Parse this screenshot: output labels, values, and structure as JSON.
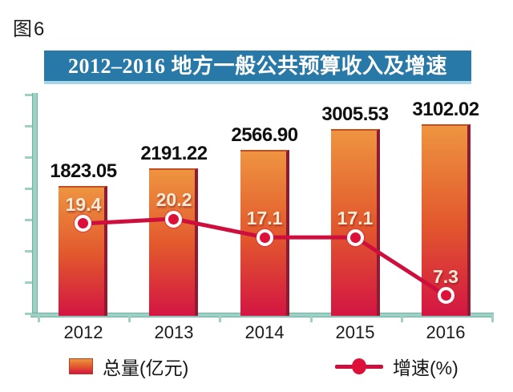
{
  "figure_label": "图6",
  "title": "2012–2016 地方一般公共预算收入及增速",
  "legend": [
    {
      "label": "总量(亿元)",
      "swatch": "bar"
    },
    {
      "label": "增速(%)",
      "swatch": "line-dot"
    }
  ],
  "colors": {
    "title_bg": "#2878A8",
    "title_underline": "#A6D7E8",
    "title_text": "#FFFFFF",
    "axis": "#9ED1C4",
    "axis_edge": "#6FB0A3",
    "bar_top": "#EE9440",
    "bar_mid": "#E2582D",
    "bar_bottom": "#D31543",
    "bar_edge": "#8E1B31",
    "line": "#CE0F3D",
    "marker_fill": "#DC1038",
    "marker_ring": "#FFFFFF",
    "value_label": "#101010",
    "growth_label": "#F6EBD4"
  },
  "chart_data": {
    "type": "bar",
    "title": "2012–2016 地方一般公共预算收入及增速",
    "categories": [
      "2012",
      "2013",
      "2014",
      "2015",
      "2016"
    ],
    "series": [
      {
        "name": "总量(亿元)",
        "type": "bar",
        "values": [
          1823.05,
          2191.22,
          2566.9,
          3005.53,
          3102.02
        ]
      },
      {
        "name": "增速(%)",
        "type": "line",
        "values": [
          19.4,
          20.2,
          17.1,
          17.1,
          7.3
        ]
      }
    ],
    "xlabel": "",
    "ylabel": "",
    "bar_axis_range": [
      0,
      3400
    ],
    "line_axis_range": [
      3,
      41
    ],
    "grid": false,
    "legend_position": "bottom",
    "data_labels": true
  }
}
